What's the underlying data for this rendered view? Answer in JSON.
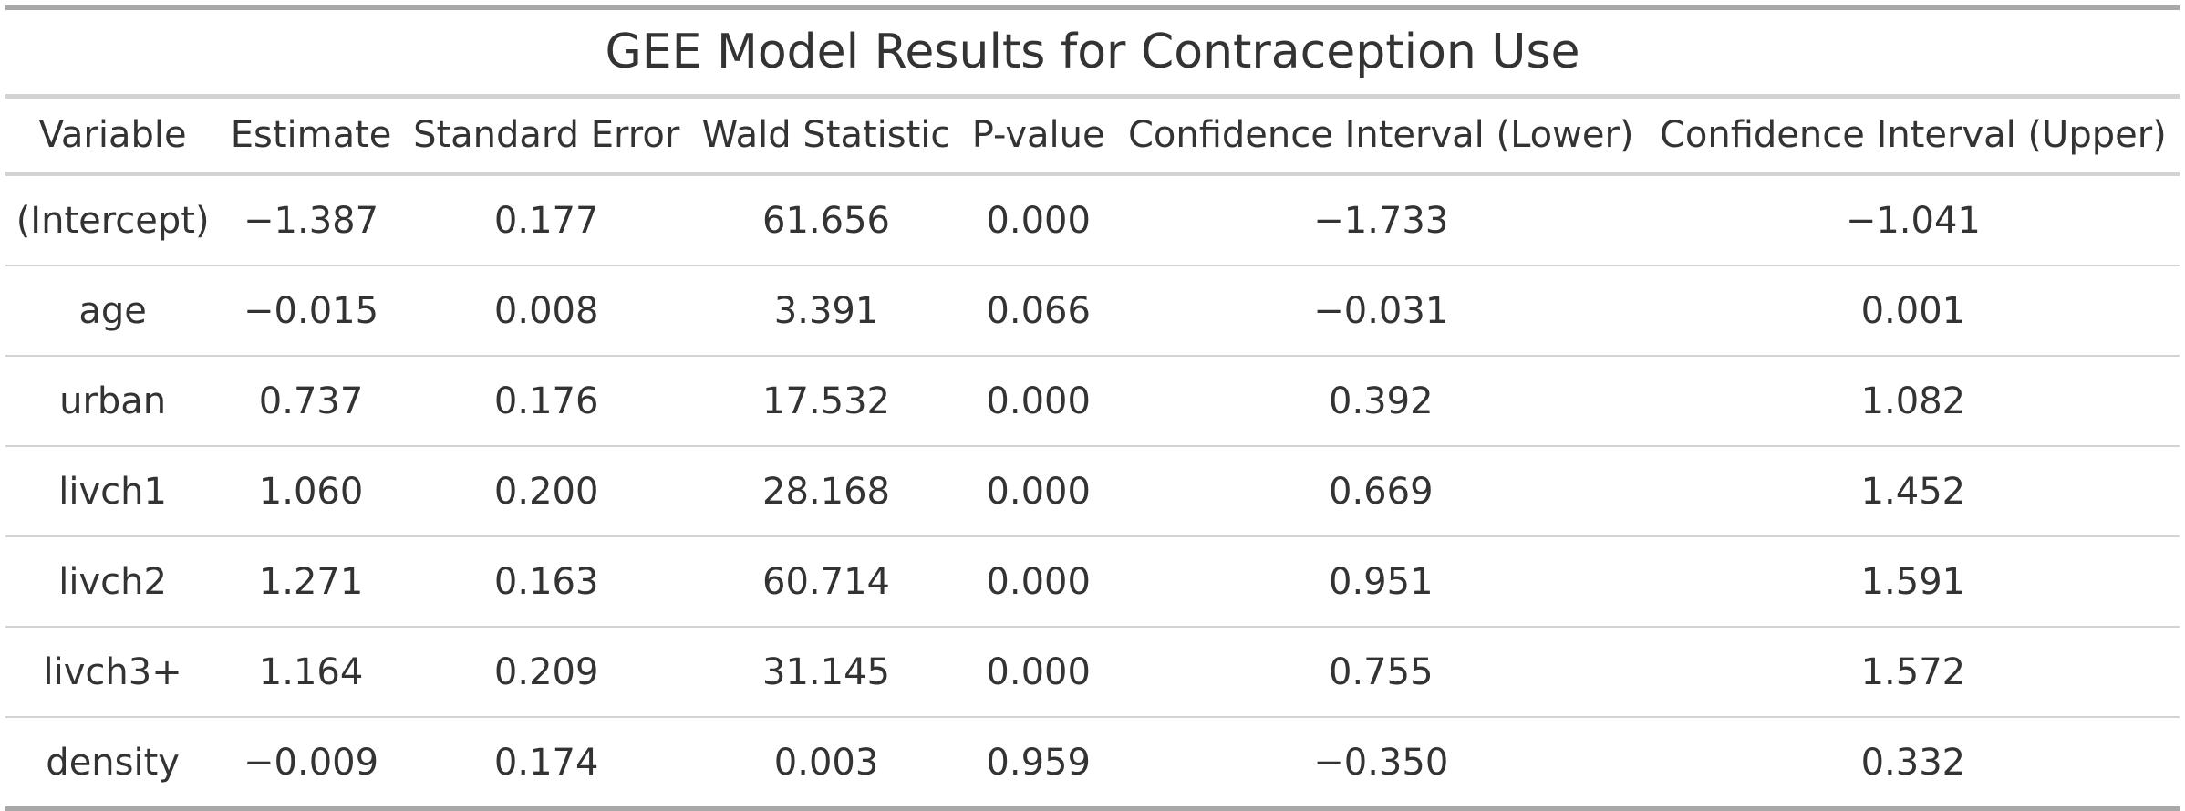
{
  "title": "GEE Model Results for Contraception Use",
  "columns": [
    "Variable",
    "Estimate",
    "Standard Error",
    "Wald Statistic",
    "P-value",
    "Confidence Interval (Lower)",
    "Confidence Interval (Upper)"
  ],
  "rows": [
    [
      "(Intercept)",
      "−1.387",
      "0.177",
      "61.656",
      "0.000",
      "−1.733",
      "−1.041"
    ],
    [
      "age",
      "−0.015",
      "0.008",
      "3.391",
      "0.066",
      "−0.031",
      "0.001"
    ],
    [
      "urban",
      "0.737",
      "0.176",
      "17.532",
      "0.000",
      "0.392",
      "1.082"
    ],
    [
      "livch1",
      "1.060",
      "0.200",
      "28.168",
      "0.000",
      "0.669",
      "1.452"
    ],
    [
      "livch2",
      "1.271",
      "0.163",
      "60.714",
      "0.000",
      "0.951",
      "1.591"
    ],
    [
      "livch3+",
      "1.164",
      "0.209",
      "31.145",
      "0.000",
      "0.755",
      "1.572"
    ],
    [
      "density",
      "−0.009",
      "0.174",
      "0.003",
      "0.959",
      "−0.350",
      "0.332"
    ]
  ],
  "colors": {
    "text": "#333333",
    "outer_rule": "#a8a8a8",
    "inner_rule": "#d3d3d3",
    "background": "#ffffff"
  }
}
